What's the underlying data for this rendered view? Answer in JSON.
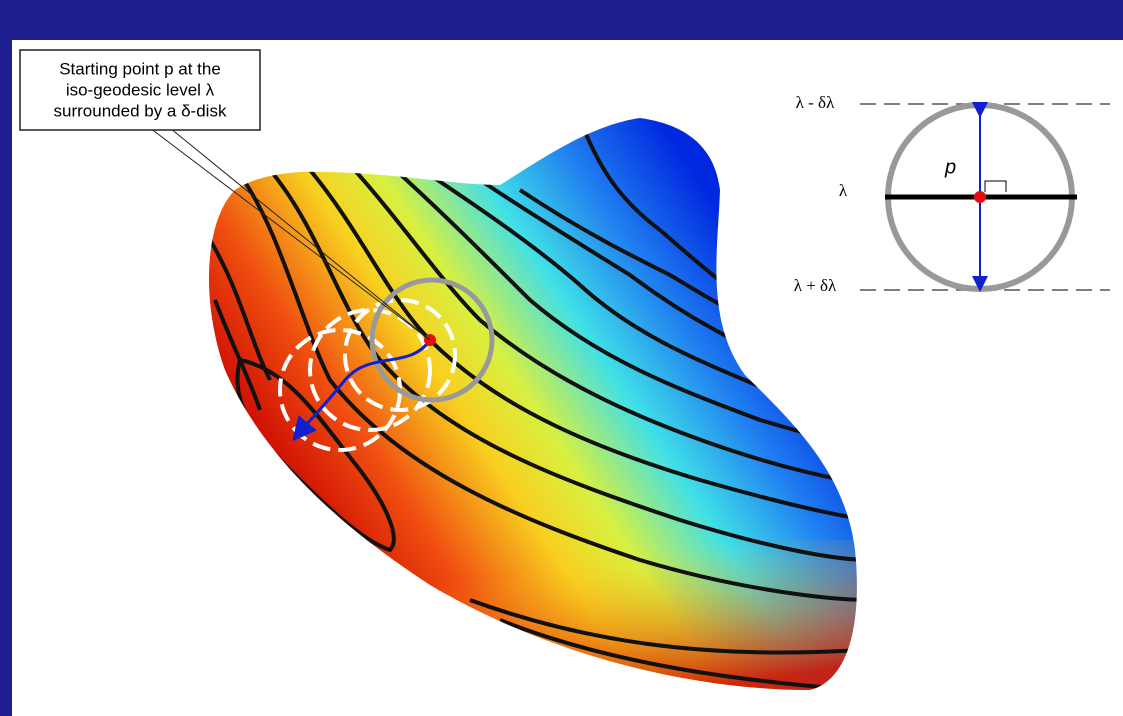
{
  "callout": {
    "lines": [
      "Starting point p at the",
      "iso-geodesic level λ",
      "surrounded by a δ-disk"
    ]
  },
  "inset": {
    "upper_label": "λ - δλ",
    "middle_label": "λ",
    "lower_label": "λ + δλ",
    "point_label": "p"
  }
}
